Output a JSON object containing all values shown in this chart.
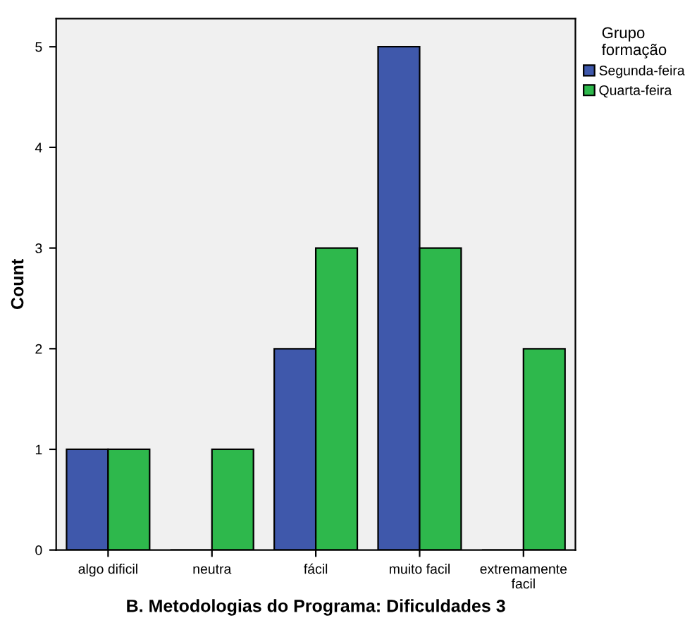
{
  "chart_data": {
    "type": "bar",
    "xlabel": "B. Metodologias do Programa: Dificuldades 3",
    "ylabel": "Count",
    "legend_title": "Grupo\nformação",
    "categories": [
      "algo dificil",
      "neutra",
      "fácil",
      "muito facil",
      "extremamente\nfacil"
    ],
    "series": [
      {
        "name": "Segunda-feira",
        "color": "#3f58ab",
        "values": [
          1,
          0,
          2,
          5,
          0
        ]
      },
      {
        "name": "Quarta-feira",
        "color": "#2eb84c",
        "values": [
          1,
          1,
          3,
          3,
          2
        ]
      }
    ],
    "ylim": [
      0,
      5.28
    ],
    "yticks": [
      0,
      1,
      2,
      3,
      4,
      5
    ],
    "grid": false,
    "legend": "top right"
  }
}
